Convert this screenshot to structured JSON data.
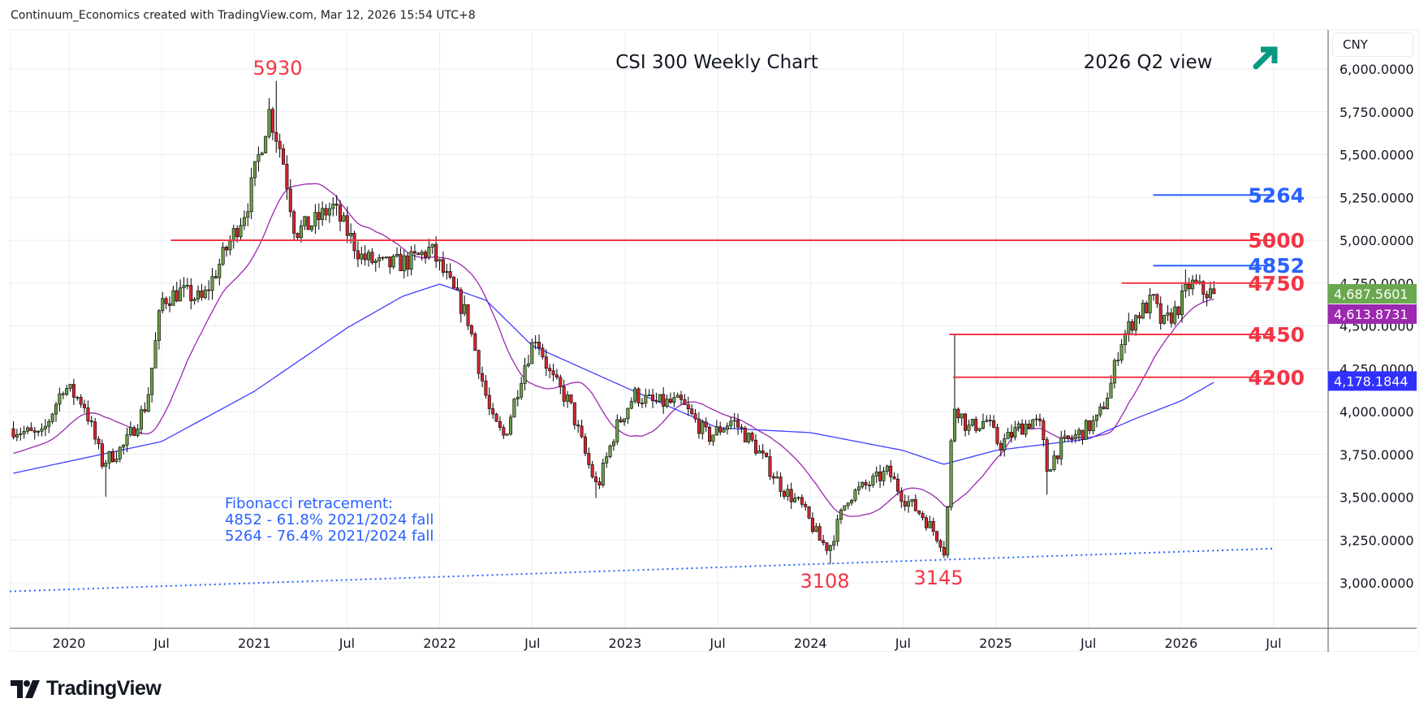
{
  "attribution": "Continuum_Economics created with TradingView.com, Mar 12, 2026 15:54 UTC+8",
  "logo_text": "TradingView",
  "currency": "CNY",
  "chart_data": {
    "type": "candlestick",
    "title": "CSI 300 Weekly Chart",
    "subtitle": "2026 Q2 view",
    "view_direction": "up",
    "colors": {
      "up": "#6a9f45",
      "down": "#d3262f",
      "red_level": "#f23645",
      "blue_level": "#2962ff",
      "fast_ma": "#9c27b0",
      "slow_ma": "#3f3fff",
      "arrow": "#089981",
      "last_tag": "#6aa84f",
      "fast_tag": "#9c27b0",
      "slow_tag": "#3030ff"
    },
    "ylim": [
      2700,
      6100
    ],
    "xlim": [
      2019.68,
      2026.85
    ],
    "y_ticks": [
      "6,000.0000",
      "5,750.0000",
      "5,500.0000",
      "5,250.0000",
      "5,000.0000",
      "4,750.0000",
      "4,500.0000",
      "4,250.0000",
      "4,000.0000",
      "3,750.0000",
      "3,500.0000",
      "3,250.0000",
      "3,000.0000"
    ],
    "y_tick_values": [
      6000,
      5750,
      5500,
      5250,
      5000,
      4750,
      4500,
      4250,
      4000,
      3750,
      3500,
      3250,
      3000
    ],
    "x_ticks": [
      {
        "label": "2020",
        "t": 2020.0
      },
      {
        "label": "Jul",
        "t": 2020.5
      },
      {
        "label": "2021",
        "t": 2021.0
      },
      {
        "label": "Jul",
        "t": 2021.5
      },
      {
        "label": "2022",
        "t": 2022.0
      },
      {
        "label": "Jul",
        "t": 2022.5
      },
      {
        "label": "2023",
        "t": 2023.0
      },
      {
        "label": "Jul",
        "t": 2023.5
      },
      {
        "label": "2024",
        "t": 2024.0
      },
      {
        "label": "Jul",
        "t": 2024.5
      },
      {
        "label": "2025",
        "t": 2025.0
      },
      {
        "label": "Jul",
        "t": 2025.5
      },
      {
        "label": "2026",
        "t": 2026.0
      },
      {
        "label": "Jul",
        "t": 2026.5
      }
    ],
    "close_path": [
      [
        2019.7,
        3900
      ],
      [
        2019.85,
        3850
      ],
      [
        2019.97,
        4150
      ],
      [
        2020.08,
        4050
      ],
      [
        2020.18,
        3700
      ],
      [
        2020.3,
        3800
      ],
      [
        2020.42,
        4050
      ],
      [
        2020.5,
        4650
      ],
      [
        2020.6,
        4700
      ],
      [
        2020.72,
        4650
      ],
      [
        2020.85,
        4950
      ],
      [
        2020.96,
        5200
      ],
      [
        2021.08,
        5750
      ],
      [
        2021.15,
        5500
      ],
      [
        2021.22,
        5050
      ],
      [
        2021.32,
        5100
      ],
      [
        2021.42,
        5200
      ],
      [
        2021.5,
        5050
      ],
      [
        2021.58,
        4900
      ],
      [
        2021.7,
        4850
      ],
      [
        2021.85,
        4880
      ],
      [
        2021.95,
        4950
      ],
      [
        2022.05,
        4750
      ],
      [
        2022.15,
        4550
      ],
      [
        2022.28,
        3950
      ],
      [
        2022.35,
        3850
      ],
      [
        2022.45,
        4250
      ],
      [
        2022.52,
        4450
      ],
      [
        2022.6,
        4200
      ],
      [
        2022.7,
        4050
      ],
      [
        2022.8,
        3700
      ],
      [
        2022.85,
        3550
      ],
      [
        2022.95,
        3900
      ],
      [
        2023.05,
        4100
      ],
      [
        2023.15,
        4050
      ],
      [
        2023.3,
        4050
      ],
      [
        2023.45,
        3850
      ],
      [
        2023.58,
        3950
      ],
      [
        2023.7,
        3800
      ],
      [
        2023.85,
        3550
      ],
      [
        2023.95,
        3450
      ],
      [
        2024.05,
        3250
      ],
      [
        2024.1,
        3200
      ],
      [
        2024.2,
        3500
      ],
      [
        2024.35,
        3600
      ],
      [
        2024.42,
        3650
      ],
      [
        2024.5,
        3500
      ],
      [
        2024.6,
        3400
      ],
      [
        2024.7,
        3250
      ],
      [
        2024.73,
        3160
      ],
      [
        2024.75,
        3700
      ],
      [
        2024.78,
        4050
      ],
      [
        2024.85,
        3900
      ],
      [
        2024.95,
        3950
      ],
      [
        2025.02,
        3800
      ],
      [
        2025.12,
        3900
      ],
      [
        2025.2,
        3950
      ],
      [
        2025.25,
        3900
      ],
      [
        2025.27,
        3650
      ],
      [
        2025.35,
        3800
      ],
      [
        2025.45,
        3870
      ],
      [
        2025.55,
        3950
      ],
      [
        2025.62,
        4150
      ],
      [
        2025.67,
        4400
      ],
      [
        2025.75,
        4550
      ],
      [
        2025.85,
        4650
      ],
      [
        2025.9,
        4500
      ],
      [
        2025.98,
        4600
      ],
      [
        2026.05,
        4750
      ],
      [
        2026.12,
        4700
      ],
      [
        2026.19,
        4687.56
      ]
    ],
    "extremes": [
      {
        "t": 2020.2,
        "low": 3503
      },
      {
        "t": 2021.12,
        "high": 5930
      },
      {
        "t": 2022.85,
        "low": 3495
      },
      {
        "t": 2024.1,
        "low": 3108
      },
      {
        "t": 2024.72,
        "low": 3145
      },
      {
        "t": 2024.77,
        "high": 4450
      },
      {
        "t": 2025.27,
        "low": 3515
      },
      {
        "t": 2026.02,
        "high": 4830
      }
    ],
    "slow_ma_path": [
      [
        2019.7,
        3640
      ],
      [
        2020.5,
        3825
      ],
      [
        2021.0,
        4118
      ],
      [
        2021.5,
        4488
      ],
      [
        2021.8,
        4673
      ],
      [
        2022.0,
        4744
      ],
      [
        2022.25,
        4650
      ],
      [
        2022.5,
        4384
      ],
      [
        2023.0,
        4142
      ],
      [
        2023.5,
        3905
      ],
      [
        2024.0,
        3877
      ],
      [
        2024.5,
        3773
      ],
      [
        2024.72,
        3692
      ],
      [
        2025.0,
        3773
      ],
      [
        2025.5,
        3840
      ],
      [
        2025.75,
        3957
      ],
      [
        2026.0,
        4062
      ],
      [
        2026.19,
        4178.18
      ]
    ],
    "fast_ma_period_weeks": 20,
    "last_price": "4,687.5601",
    "fast_ma_value": "4,613.8731",
    "slow_ma_value": "4,178.1844",
    "last_price_value": 4687.56,
    "fast_ma_num": 4613.87,
    "slow_ma_num": 4178.18,
    "levels": [
      {
        "label": "5264",
        "value": 5264,
        "color": "blue",
        "from": 2025.85
      },
      {
        "label": "5000",
        "value": 5000,
        "color": "red",
        "from": 2020.55
      },
      {
        "label": "4852",
        "value": 4852,
        "color": "blue",
        "from": 2025.85
      },
      {
        "label": "4750",
        "value": 4750,
        "color": "red",
        "from": 2025.68
      },
      {
        "label": "4450",
        "value": 4450,
        "color": "red",
        "from": 2024.75
      },
      {
        "label": "4200",
        "value": 4200,
        "color": "red",
        "from": 2024.77
      }
    ],
    "level_end": 2026.5,
    "trendline": {
      "from": [
        2019.68,
        2950
      ],
      "to": [
        2026.5,
        3200
      ]
    },
    "annotations": {
      "high": "5930",
      "low1": "3108",
      "low2": "3145"
    },
    "fib_text": [
      "Fibonacci retracement:",
      "4852 - 61.8% 2021/2024 fall",
      "5264 - 76.4% 2021/2024 fall"
    ]
  }
}
